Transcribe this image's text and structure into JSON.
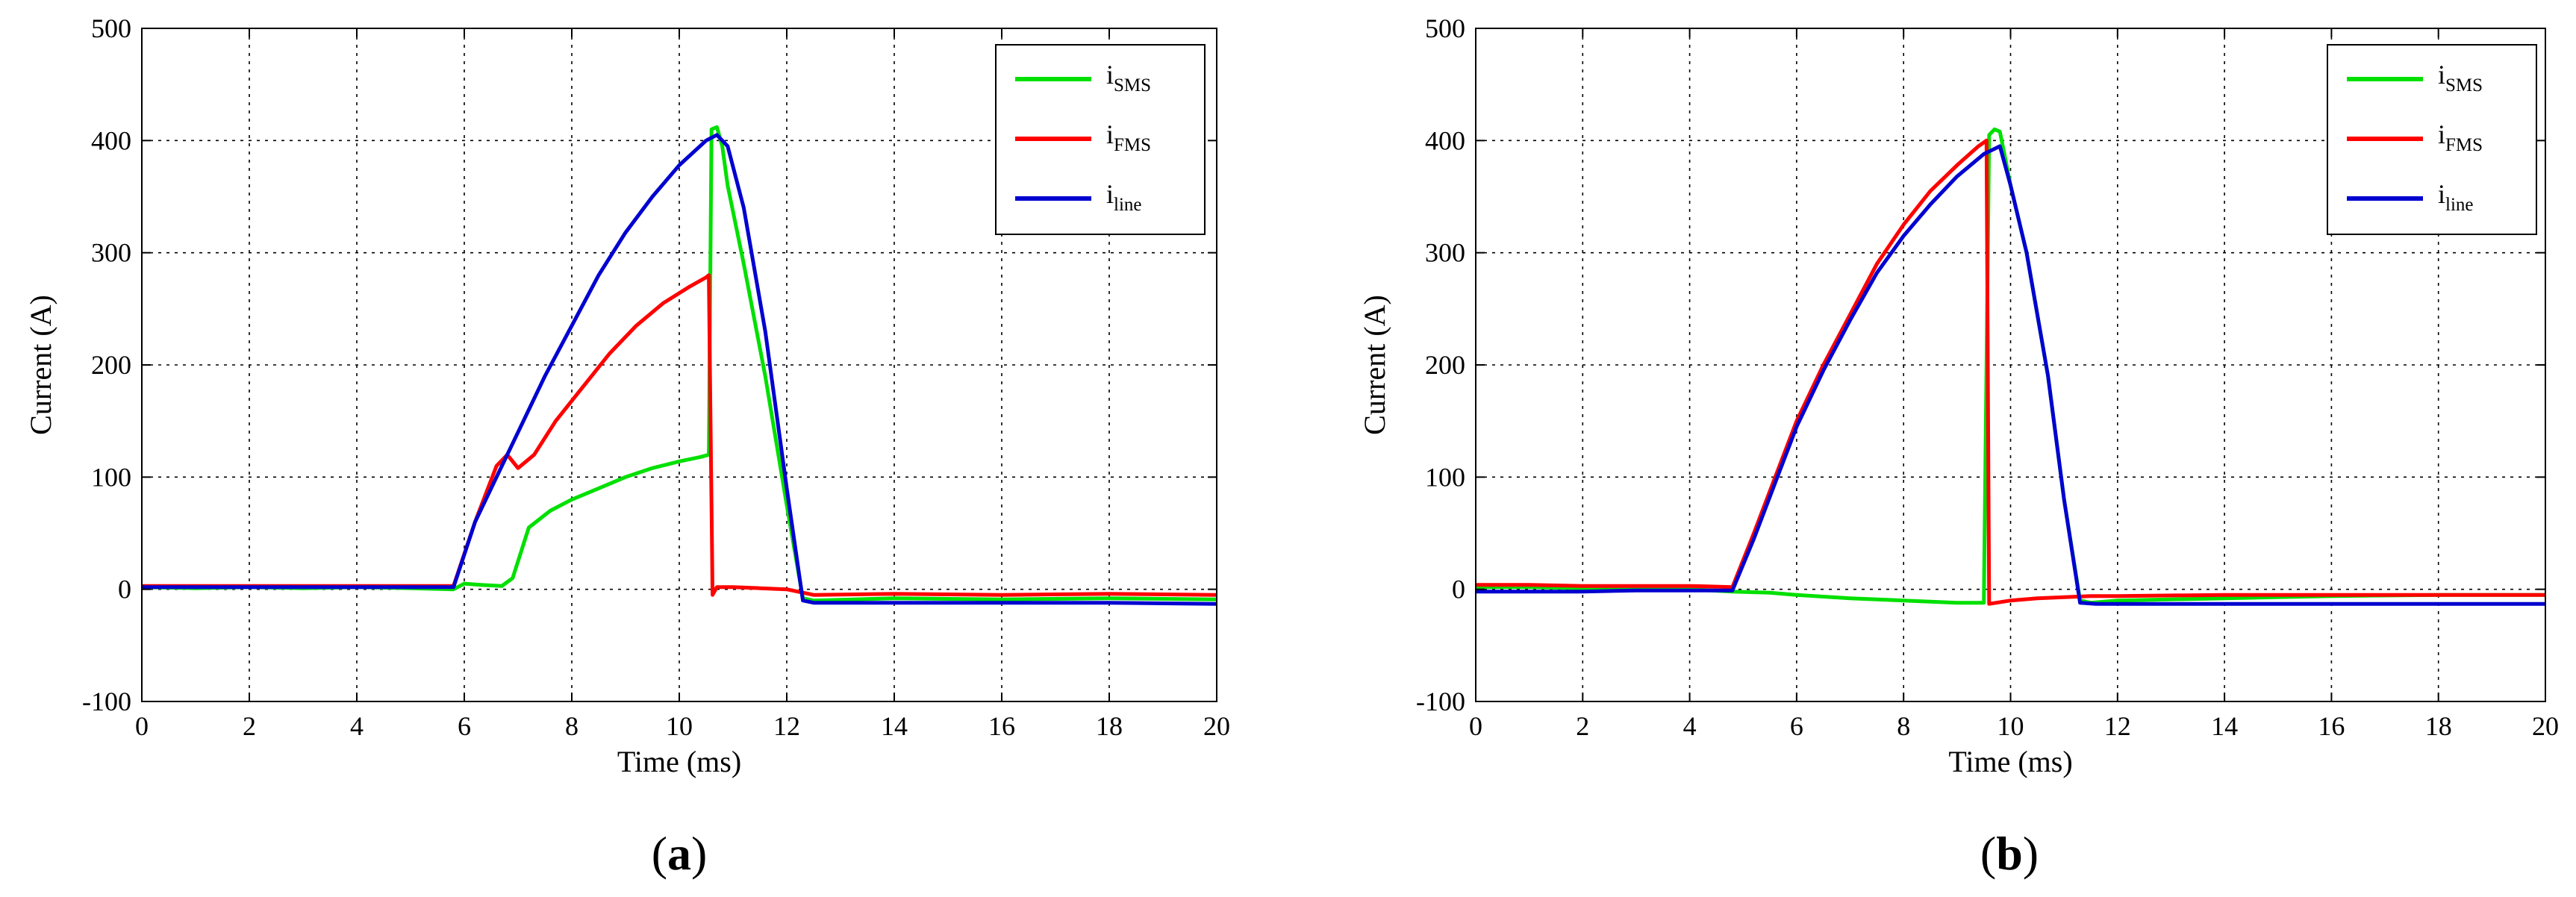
{
  "chart_data": [
    {
      "type": "line",
      "panel_label": "(a)",
      "xlabel": "Time (ms)",
      "ylabel": "Current (A)",
      "xlim": [
        0,
        20
      ],
      "ylim": [
        -100,
        500
      ],
      "xticks": [
        0,
        2,
        4,
        6,
        8,
        10,
        12,
        14,
        16,
        18,
        20
      ],
      "yticks": [
        -100,
        0,
        100,
        200,
        300,
        400,
        500
      ],
      "grid": true,
      "legend_position": "top-right",
      "series": [
        {
          "name": "iSMS",
          "name_main": "i",
          "name_sub": "SMS",
          "color": "#00e000",
          "x": [
            0,
            1,
            2,
            3,
            4,
            5,
            5.8,
            6.0,
            6.3,
            6.7,
            6.9,
            7.2,
            7.6,
            8.0,
            8.5,
            9.0,
            9.5,
            10.0,
            10.4,
            10.55,
            10.6,
            10.7,
            10.8,
            10.9,
            11.2,
            11.6,
            12.0,
            12.3,
            12.5,
            14,
            16,
            18,
            20
          ],
          "y": [
            2,
            1,
            2,
            1,
            2,
            1,
            0,
            5,
            4,
            3,
            10,
            55,
            70,
            80,
            90,
            100,
            108,
            114,
            118,
            120,
            410,
            412,
            395,
            360,
            290,
            190,
            75,
            -8,
            -10,
            -8,
            -9,
            -8,
            -9
          ]
        },
        {
          "name": "iFMS",
          "name_main": "i",
          "name_sub": "FMS",
          "color": "#ff0000",
          "x": [
            0,
            1,
            2,
            3,
            4,
            5,
            5.8,
            6.2,
            6.6,
            6.8,
            7.0,
            7.3,
            7.7,
            8.2,
            8.7,
            9.2,
            9.7,
            10.2,
            10.5,
            10.55,
            10.62,
            10.7,
            11.0,
            11.5,
            12.0,
            12.3,
            12.5,
            14,
            16,
            18,
            20
          ],
          "y": [
            3,
            3,
            3,
            3,
            3,
            3,
            3,
            60,
            110,
            120,
            108,
            120,
            150,
            180,
            210,
            235,
            255,
            270,
            278,
            280,
            -5,
            2,
            2,
            1,
            0,
            -3,
            -5,
            -4,
            -5,
            -4,
            -5
          ]
        },
        {
          "name": "iline",
          "name_main": "i",
          "name_sub": "line",
          "color": "#0000d0",
          "x": [
            0,
            1,
            2,
            3,
            4,
            5,
            5.8,
            6.2,
            6.6,
            7.0,
            7.5,
            8.0,
            8.5,
            9.0,
            9.5,
            10.0,
            10.5,
            10.7,
            10.9,
            11.2,
            11.6,
            12.0,
            12.3,
            12.5,
            14,
            16,
            18,
            20
          ],
          "y": [
            2,
            2,
            2,
            2,
            2,
            2,
            2,
            60,
            100,
            140,
            190,
            235,
            280,
            318,
            350,
            378,
            400,
            405,
            395,
            340,
            230,
            90,
            -10,
            -12,
            -12,
            -12,
            -12,
            -13
          ]
        }
      ]
    },
    {
      "type": "line",
      "panel_label": "(b)",
      "xlabel": "Time (ms)",
      "ylabel": "Current (A)",
      "xlim": [
        0,
        20
      ],
      "ylim": [
        -100,
        500
      ],
      "xticks": [
        0,
        2,
        4,
        6,
        8,
        10,
        12,
        14,
        16,
        18,
        20
      ],
      "yticks": [
        -100,
        0,
        100,
        200,
        300,
        400,
        500
      ],
      "grid": true,
      "legend_position": "top-right",
      "series": [
        {
          "name": "iSMS",
          "name_main": "i",
          "name_sub": "SMS",
          "color": "#00e000",
          "x": [
            0,
            1,
            2,
            3,
            4,
            4.8,
            5.5,
            6.0,
            7.0,
            8.0,
            9.0,
            9.5,
            9.6,
            9.7,
            9.8,
            10.0,
            10.3,
            10.7,
            11.0,
            11.3,
            11.5,
            12,
            14,
            16,
            18,
            20
          ],
          "y": [
            2,
            2,
            1,
            0,
            0,
            -2,
            -3,
            -5,
            -8,
            -10,
            -12,
            -12,
            405,
            410,
            408,
            360,
            300,
            190,
            80,
            -10,
            -12,
            -10,
            -8,
            -6,
            -5,
            -5
          ]
        },
        {
          "name": "iFMS",
          "name_main": "i",
          "name_sub": "FMS",
          "color": "#ff0000",
          "x": [
            0,
            1,
            2,
            3,
            4,
            4.8,
            5.2,
            5.6,
            6.0,
            6.5,
            7.0,
            7.5,
            8.0,
            8.5,
            9.0,
            9.4,
            9.55,
            9.6,
            10.0,
            10.5,
            11.0,
            11.5,
            12,
            14,
            16,
            18,
            20
          ],
          "y": [
            4,
            4,
            3,
            3,
            3,
            2,
            50,
            100,
            150,
            200,
            245,
            290,
            325,
            355,
            378,
            395,
            400,
            -13,
            -10,
            -8,
            -7,
            -6,
            -6,
            -5,
            -5,
            -5,
            -5
          ]
        },
        {
          "name": "iline",
          "name_main": "i",
          "name_sub": "line",
          "color": "#0000d0",
          "x": [
            0,
            1,
            2,
            3,
            4,
            4.8,
            5.2,
            5.6,
            6.0,
            6.5,
            7.0,
            7.5,
            8.0,
            8.5,
            9.0,
            9.5,
            9.8,
            10.0,
            10.3,
            10.7,
            11.0,
            11.3,
            11.6,
            12,
            14,
            16,
            18,
            20
          ],
          "y": [
            -2,
            -2,
            -2,
            -1,
            -1,
            -1,
            45,
            95,
            145,
            195,
            240,
            282,
            315,
            343,
            368,
            388,
            395,
            360,
            300,
            190,
            80,
            -12,
            -13,
            -13,
            -13,
            -13,
            -13,
            -13
          ]
        }
      ]
    }
  ]
}
